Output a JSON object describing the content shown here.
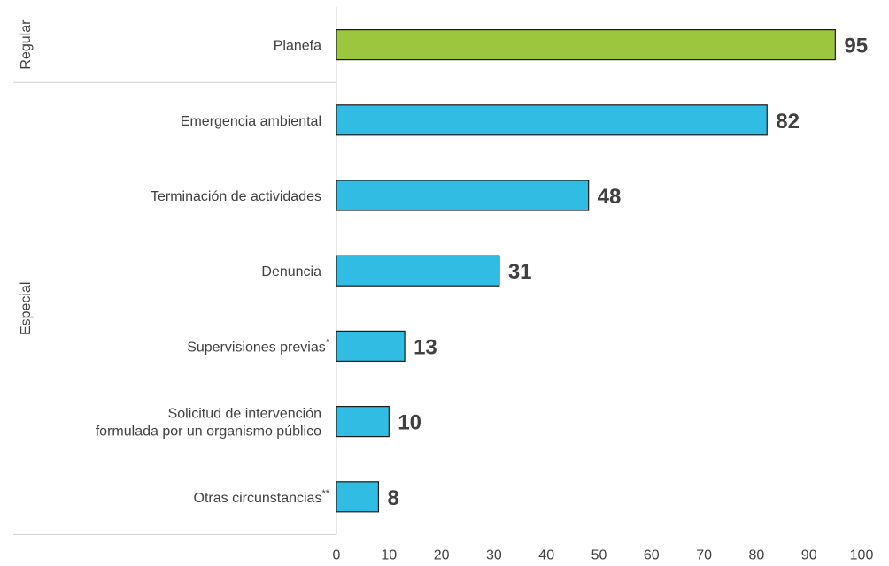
{
  "chart_data": {
    "type": "bar",
    "orientation": "horizontal",
    "groups": [
      {
        "label": "Regular",
        "categories": [
          "Planefa"
        ]
      },
      {
        "label": "Especial",
        "categories": [
          "Emergencia ambiental",
          "Terminación de actividades",
          "Denuncia",
          "Supervisiones previas*",
          "Solicitud de intervención formulada por un organismo público",
          "Otras circunstancias**"
        ]
      }
    ],
    "categories": [
      {
        "lines": [
          "Planefa"
        ],
        "sup": ""
      },
      {
        "lines": [
          "Emergencia ambiental"
        ],
        "sup": ""
      },
      {
        "lines": [
          "Terminación de actividades"
        ],
        "sup": ""
      },
      {
        "lines": [
          "Denuncia"
        ],
        "sup": ""
      },
      {
        "lines": [
          "Supervisiones previas"
        ],
        "sup": "*"
      },
      {
        "lines": [
          "Solicitud de intervención",
          "formulada por un organismo público"
        ],
        "sup": ""
      },
      {
        "lines": [
          "Otras circunstancias"
        ],
        "sup": "**"
      }
    ],
    "values": [
      95,
      82,
      48,
      31,
      13,
      10,
      8
    ],
    "colors": [
      "#9cc63d",
      "#31bde3",
      "#31bde3",
      "#31bde3",
      "#31bde3",
      "#31bde3",
      "#31bde3"
    ],
    "xlim": [
      0,
      100
    ],
    "xticks": [
      0,
      10,
      20,
      30,
      40,
      50,
      60,
      70,
      80,
      90,
      100
    ],
    "grid": false,
    "legend": "none"
  }
}
